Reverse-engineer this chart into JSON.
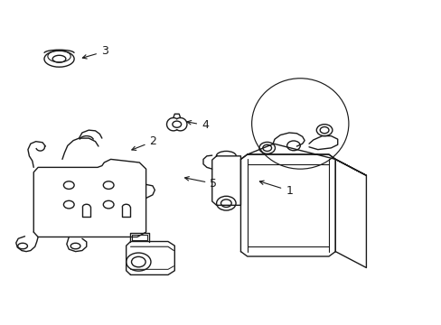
{
  "background_color": "#ffffff",
  "line_color": "#1a1a1a",
  "figsize": [
    4.89,
    3.6
  ],
  "dpi": 100,
  "label_positions": {
    "1": [
      0.648,
      0.415,
      0.615,
      0.445
    ],
    "2": [
      0.335,
      0.565,
      0.295,
      0.555
    ],
    "3": [
      0.228,
      0.845,
      0.185,
      0.843
    ],
    "4": [
      0.456,
      0.615,
      0.422,
      0.632
    ],
    "5": [
      0.476,
      0.43,
      0.445,
      0.443
    ]
  }
}
